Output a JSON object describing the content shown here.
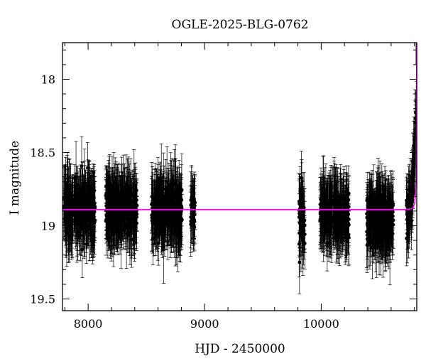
{
  "chart_data": {
    "type": "scatter",
    "title": "OGLE-2025-BLG-0762",
    "xlabel": "HJD - 2450000",
    "ylabel": "I magnitude",
    "xlim": [
      7780,
      10820
    ],
    "ylim": [
      19.58,
      17.75
    ],
    "y_inverted": true,
    "x_ticks": [
      8000,
      9000,
      10000
    ],
    "x_tick_labels": [
      "8000",
      "9000",
      "10000"
    ],
    "y_ticks": [
      18,
      18.5,
      19,
      19.5
    ],
    "y_tick_labels": [
      "18",
      "18.5",
      "19",
      "19.5"
    ],
    "grid": false,
    "legend": "none",
    "colors": {
      "points": "#000000",
      "model": "#ff00ff",
      "axes": "#000000"
    },
    "observing_seasons": [
      {
        "x": [
          7790,
          8060
        ],
        "y_center": 18.89,
        "y_spread": 0.14,
        "err": 0.18
      },
      {
        "x": [
          8150,
          8420
        ],
        "y_center": 18.89,
        "y_spread": 0.14,
        "err": 0.18
      },
      {
        "x": [
          8540,
          8810
        ],
        "y_center": 18.89,
        "y_spread": 0.14,
        "err": 0.18
      },
      {
        "x": [
          8880,
          8920
        ],
        "y_center": 18.89,
        "y_spread": 0.1,
        "err": 0.16
      },
      {
        "x": [
          9810,
          9860
        ],
        "y_center": 18.95,
        "y_spread": 0.16,
        "err": 0.19
      },
      {
        "x": [
          9990,
          10240
        ],
        "y_center": 18.91,
        "y_spread": 0.14,
        "err": 0.18
      },
      {
        "x": [
          10390,
          10620
        ],
        "y_center": 18.95,
        "y_spread": 0.14,
        "err": 0.19
      },
      {
        "x": [
          10730,
          10818
        ],
        "y_center": 18.89,
        "y_spread": 0.12,
        "err": 0.16,
        "rising": true
      }
    ],
    "model": {
      "name": "",
      "baseline": 18.89,
      "peak_time": 10830,
      "points": [
        [
          7780,
          18.89
        ],
        [
          10700,
          18.89
        ],
        [
          10770,
          18.885
        ],
        [
          10790,
          18.875
        ],
        [
          10800,
          18.85
        ],
        [
          10808,
          18.8
        ],
        [
          10812,
          18.72
        ],
        [
          10815,
          18.6
        ],
        [
          10817,
          18.4
        ],
        [
          10818,
          18.15
        ],
        [
          10819,
          17.9
        ],
        [
          10820,
          17.75
        ]
      ]
    }
  }
}
